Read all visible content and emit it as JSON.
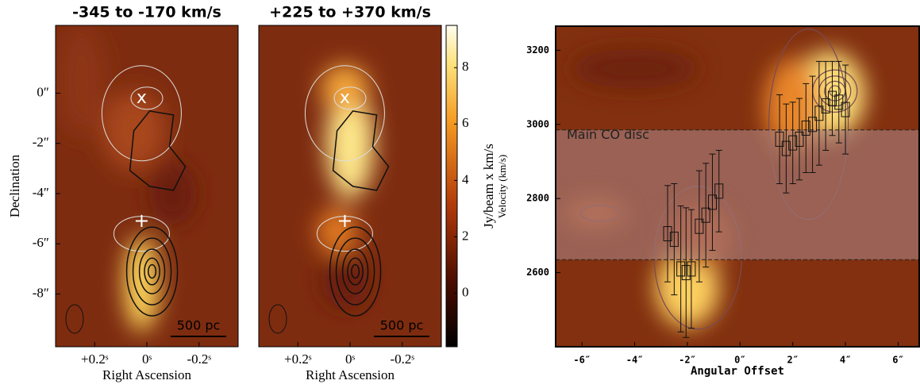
{
  "chart_data": [
    {
      "type": "image",
      "title": "-345 to -170 km/s",
      "xlabel": "Right Ascension",
      "ylabel": "Declination",
      "xlim": [
        0.35,
        -0.35
      ],
      "ylim": [
        -10.1,
        2.7
      ],
      "xticks": [
        {
          "value": 0.2,
          "label": "+0.2ˢ"
        },
        {
          "value": 0,
          "label": "0ˢ"
        },
        {
          "value": -0.2,
          "label": "-0.2ˢ"
        }
      ],
      "yticks": [
        {
          "value": 0,
          "label": "0″"
        },
        {
          "value": -2,
          "label": "-2″"
        },
        {
          "value": -4,
          "label": "-4″"
        },
        {
          "value": -6,
          "label": "-6″"
        },
        {
          "value": -8,
          "label": "-8″"
        }
      ],
      "markers": [
        "x",
        "+"
      ],
      "scalebar_label": "500 pc"
    },
    {
      "type": "image",
      "title": "+225 to +370 km/s",
      "xlabel": "Right Ascension",
      "xlim": [
        0.35,
        -0.35
      ],
      "ylim": [
        -10.1,
        2.7
      ],
      "xticks": [
        {
          "value": 0.2,
          "label": "+0.2ˢ"
        },
        {
          "value": 0,
          "label": "0ˢ"
        },
        {
          "value": -0.2,
          "label": "-0.2ˢ"
        }
      ],
      "markers": [
        "x",
        "+"
      ],
      "scalebar_label": "500 pc",
      "colorbar": {
        "label": "Jy/beam x km/s",
        "lim": [
          -1.9,
          9.5
        ],
        "ticks": [
          0,
          2,
          4,
          6,
          8
        ]
      }
    },
    {
      "type": "errorbar",
      "xlabel": "Angular Offset",
      "ylabel": "Velocity (km/s)",
      "xlim": [
        -7,
        6.8
      ],
      "ylim": [
        2400,
        3265
      ],
      "xticks": [
        {
          "value": -6,
          "label": "-6″"
        },
        {
          "value": -4,
          "label": "-4″"
        },
        {
          "value": -2,
          "label": "-2″"
        },
        {
          "value": 0,
          "label": "0″"
        },
        {
          "value": 2,
          "label": "2″"
        },
        {
          "value": 4,
          "label": "4″"
        },
        {
          "value": 6,
          "label": "6″"
        }
      ],
      "yticks": [
        2600,
        2800,
        3000,
        3200
      ],
      "annotation": "Main CO disc",
      "band": [
        2635,
        2985
      ],
      "x": [
        -2.75,
        -2.5,
        -2.25,
        -2.05,
        -1.85,
        -1.55,
        -1.3,
        -1.05,
        -0.8,
        1.5,
        1.75,
        2.0,
        2.25,
        2.5,
        2.75,
        3.0,
        3.25,
        3.5,
        3.75,
        4.0
      ],
      "values": [
        2705,
        2690,
        2610,
        2600,
        2610,
        2725,
        2755,
        2790,
        2820,
        2960,
        2935,
        2950,
        2960,
        2990,
        3000,
        3030,
        3050,
        3070,
        3060,
        3040
      ],
      "errors": [
        130,
        150,
        170,
        175,
        160,
        150,
        140,
        130,
        110,
        120,
        120,
        110,
        110,
        120,
        130,
        140,
        120,
        100,
        110,
        120
      ]
    }
  ]
}
